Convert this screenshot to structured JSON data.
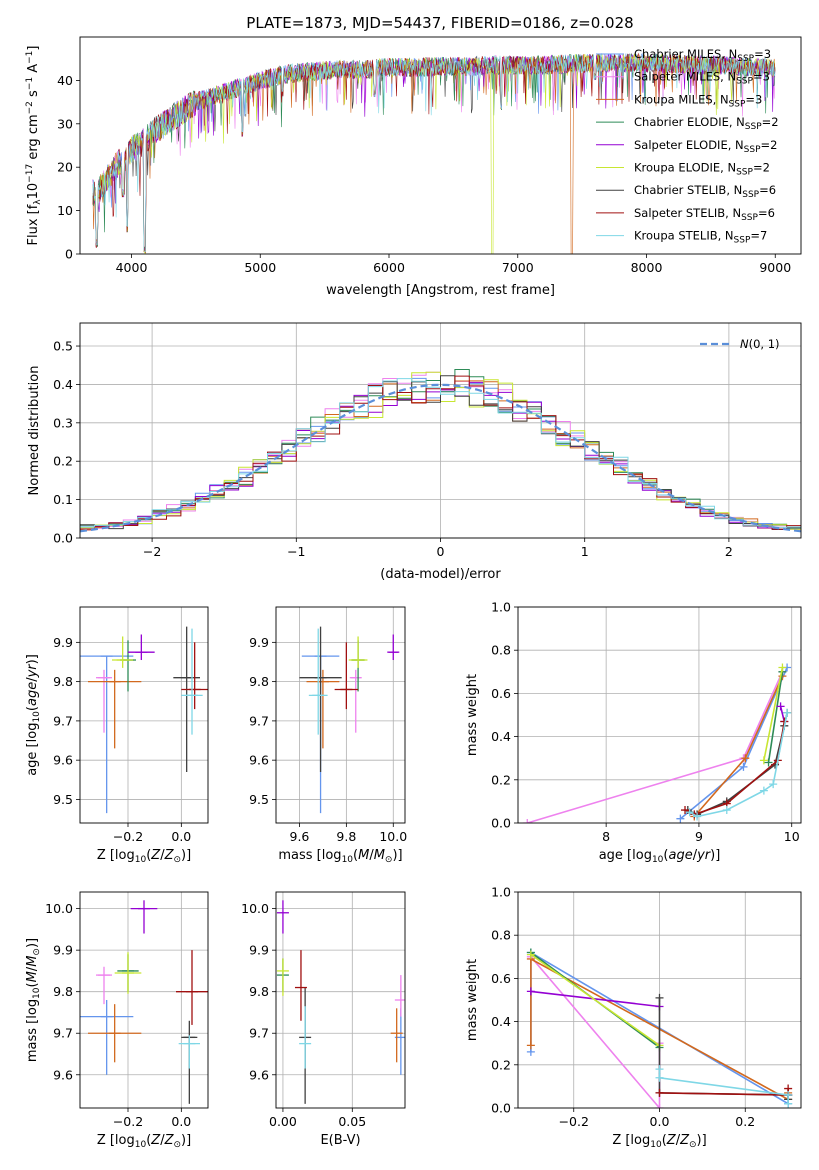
{
  "title": "PLATE=1873, MJD=54437, FIBERID=0186, z=0.028",
  "models": [
    {
      "name": "Chabrier MILES, N",
      "sub": "SSP",
      "suffix": "=3",
      "color": "#6495ed"
    },
    {
      "name": "Salpeter MILES, N",
      "sub": "SSP",
      "suffix": "=3",
      "color": "#ee82ee"
    },
    {
      "name": "Kroupa MILES, N",
      "sub": "SSP",
      "suffix": "=3",
      "color": "#d2691e"
    },
    {
      "name": "Chabrier ELODIE, N",
      "sub": "SSP",
      "suffix": "=2",
      "color": "#2e8b57"
    },
    {
      "name": "Salpeter ELODIE, N",
      "sub": "SSP",
      "suffix": "=2",
      "color": "#9400d3"
    },
    {
      "name": "Kroupa ELODIE, N",
      "sub": "SSP",
      "suffix": "=2",
      "color": "#c8e632"
    },
    {
      "name": "Chabrier STELIB, N",
      "sub": "SSP",
      "suffix": "=6",
      "color": "#404040"
    },
    {
      "name": "Salpeter STELIB, N",
      "sub": "SSP",
      "suffix": "=6",
      "color": "#a01010"
    },
    {
      "name": "Kroupa STELIB, N",
      "sub": "SSP",
      "suffix": "=7",
      "color": "#7fd7e6"
    }
  ],
  "chart_data": [
    {
      "type": "line",
      "id": "spectrum",
      "xlabel": "wavelength [Angstrom, rest frame]",
      "ylabel_text": "Flux [f",
      "ylabel_sub": "λ",
      "ylabel_rest": "10",
      "ylabel_exp": "−17",
      "ylabel_tail": " erg cm",
      "ylabel_exp2": "−2",
      "ylabel_tail2": " s",
      "ylabel_exp3": "−1",
      "ylabel_tail3": " A",
      "ylabel_exp4": "−1",
      "ylabel_end": "]",
      "xlim": [
        3600,
        9200
      ],
      "ylim": [
        0,
        50
      ],
      "xticks": [
        4000,
        5000,
        6000,
        7000,
        8000,
        9000
      ],
      "yticks": [
        0,
        10,
        20,
        30,
        40
      ],
      "continuum": {
        "x": [
          3700,
          3750,
          3800,
          3850,
          3900,
          3950,
          4000,
          4100,
          4200,
          4300,
          4400,
          4500,
          4600,
          4800,
          5000,
          5200,
          5400,
          5600,
          5800,
          6000,
          6200,
          6400,
          6600,
          6800,
          7000,
          7200,
          7400,
          7600,
          7800,
          8000,
          8200,
          8400,
          8600,
          8800,
          9000
        ],
        "y": [
          14,
          15,
          17,
          19,
          21,
          22,
          24,
          26,
          29,
          31,
          33,
          35,
          36,
          38,
          40,
          41.5,
          42,
          42.5,
          42.5,
          43,
          43,
          43.2,
          43.2,
          43.5,
          43.5,
          43.5,
          43.8,
          44,
          44,
          44,
          43.8,
          43.5,
          43.5,
          43,
          43
        ]
      },
      "absorption": [
        {
          "x": 3730,
          "y": 1.5
        },
        {
          "x": 3934,
          "y": 13
        },
        {
          "x": 3968,
          "y": 5
        },
        {
          "x": 4102,
          "y": 0
        },
        {
          "x": 4861,
          "y": 27
        },
        {
          "x": 5175,
          "y": 36
        },
        {
          "x": 5890,
          "y": 36
        },
        {
          "x": 6870,
          "y": 33
        },
        {
          "x": 7600,
          "y": 40
        }
      ],
      "dropouts": [
        {
          "x": 6800,
          "color": "#c8e632"
        },
        {
          "x": 7420,
          "color": "#d2691e"
        }
      ],
      "legend_loc": "top-right"
    },
    {
      "type": "line",
      "id": "residuals",
      "xlabel": "(data-model)/error",
      "ylabel": "Normed distribution",
      "xlim": [
        -2.5,
        2.5
      ],
      "ylim": [
        0,
        0.56
      ],
      "xticks": [
        -2,
        -1,
        0,
        1,
        2
      ],
      "xtick_labels": [
        "−2",
        "−1",
        "0",
        "1",
        "2"
      ],
      "yticks": [
        0.0,
        0.1,
        0.2,
        0.3,
        0.4,
        0.5
      ],
      "ytick_labels": [
        "0.0",
        "0.1",
        "0.2",
        "0.3",
        "0.4",
        "0.5"
      ],
      "bin_width": 0.1,
      "gaussian_label_italic": "N",
      "gaussian_label_rest": "(0, 1)",
      "gaussian_color": "#5b8fd9",
      "legend_loc": "top-right"
    },
    {
      "type": "scatter",
      "id": "age-vs-Z",
      "xlabel": "Z [log",
      "xlabel_sub": "10",
      "xlabel_rest": "(Z/Z",
      "xlabel_sub2": "⊙",
      "xlabel_end": ")]",
      "ylabel": "age  [log",
      "ylabel_sub": "10",
      "ylabel_rest": "(age/yr)]",
      "xlim": [
        -0.38,
        0.1
      ],
      "ylim": [
        9.44,
        9.99
      ],
      "xticks": [
        -0.2,
        0.0
      ],
      "xtick_labels": [
        "−0.2",
        "0.0"
      ],
      "yticks": [
        9.5,
        9.6,
        9.7,
        9.8,
        9.9
      ],
      "yticks_labels": [
        "9.5",
        "9.6",
        "9.7",
        "9.8",
        "9.9"
      ],
      "points": [
        {
          "m": 0,
          "x": -0.28,
          "y": 9.865,
          "xerr": 0.1,
          "yerr": [
            0.4,
            0.0
          ]
        },
        {
          "m": 1,
          "x": -0.29,
          "y": 9.81,
          "xerr": 0.03,
          "yerr": [
            0.14,
            0.02
          ]
        },
        {
          "m": 2,
          "x": -0.25,
          "y": 9.8,
          "xerr": 0.1,
          "yerr": [
            0.17,
            0.03
          ]
        },
        {
          "m": 3,
          "x": -0.2,
          "y": 9.855,
          "xerr": 0.03,
          "yerr": [
            0.08,
            0.05
          ]
        },
        {
          "m": 4,
          "x": -0.15,
          "y": 9.875,
          "xerr": 0.05,
          "yerr": [
            0.02,
            0.045
          ]
        },
        {
          "m": 5,
          "x": -0.22,
          "y": 9.855,
          "xerr": 0.04,
          "yerr": [
            0.02,
            0.06
          ]
        },
        {
          "m": 6,
          "x": 0.02,
          "y": 9.81,
          "xerr": 0.05,
          "yerr": [
            0.24,
            0.13
          ]
        },
        {
          "m": 7,
          "x": 0.05,
          "y": 9.78,
          "xerr": 0.05,
          "yerr": [
            0.05,
            0.12
          ]
        },
        {
          "m": 8,
          "x": 0.04,
          "y": 9.765,
          "xerr": 0.04,
          "yerr": [
            0.1,
            0.17
          ]
        }
      ]
    },
    {
      "type": "scatter",
      "id": "age-vs-mass",
      "xlabel": "mass [log",
      "xlabel_sub": "10",
      "xlabel_rest": "(M/M",
      "xlabel_sub2": "⊙",
      "xlabel_end": ")]",
      "xlim": [
        9.5,
        10.05
      ],
      "ylim": [
        9.44,
        9.99
      ],
      "xticks": [
        9.6,
        9.8,
        10.0
      ],
      "xtick_labels": [
        "9.6",
        "9.8",
        "10.0"
      ],
      "yticks": [
        9.5,
        9.6,
        9.7,
        9.8,
        9.9
      ],
      "yticks_labels": [
        "9.5",
        "9.6",
        "9.7",
        "9.8",
        "9.9"
      ],
      "points": [
        {
          "m": 0,
          "x": 9.69,
          "y": 9.865,
          "xerr": 0.08,
          "yerr": [
            0.4,
            0.0
          ]
        },
        {
          "m": 1,
          "x": 9.84,
          "y": 9.81,
          "xerr": 0.02,
          "yerr": [
            0.14,
            0.02
          ]
        },
        {
          "m": 2,
          "x": 9.7,
          "y": 9.8,
          "xerr": 0.07,
          "yerr": [
            0.17,
            0.03
          ]
        },
        {
          "m": 3,
          "x": 9.85,
          "y": 9.855,
          "xerr": 0.03,
          "yerr": [
            0.08,
            0.05
          ]
        },
        {
          "m": 4,
          "x": 10.0,
          "y": 9.875,
          "xerr": 0.02,
          "yerr": [
            0.02,
            0.045
          ]
        },
        {
          "m": 5,
          "x": 9.85,
          "y": 9.855,
          "xerr": 0.04,
          "yerr": [
            0.02,
            0.06
          ]
        },
        {
          "m": 6,
          "x": 9.69,
          "y": 9.81,
          "xerr": 0.09,
          "yerr": [
            0.24,
            0.13
          ]
        },
        {
          "m": 7,
          "x": 9.8,
          "y": 9.78,
          "xerr": 0.05,
          "yerr": [
            0.05,
            0.12
          ]
        },
        {
          "m": 8,
          "x": 9.68,
          "y": 9.765,
          "xerr": 0.04,
          "yerr": [
            0.1,
            0.17
          ]
        }
      ]
    },
    {
      "type": "line",
      "id": "weight-vs-age",
      "xlabel": "age  [log",
      "xlabel_sub": "10",
      "xlabel_rest": "(age/yr)]",
      "ylabel": "mass weight",
      "xlim": [
        7.05,
        10.1
      ],
      "ylim": [
        0,
        1
      ],
      "xticks": [
        8,
        9,
        10
      ],
      "xtick_labels": [
        "8",
        "9",
        "10"
      ],
      "yticks": [
        0.0,
        0.2,
        0.4,
        0.6,
        0.8,
        1.0
      ],
      "ytick_labels": [
        "0.0",
        "0.2",
        "0.4",
        "0.6",
        "0.8",
        "1.0"
      ],
      "series": [
        {
          "m": 0,
          "x": [
            8.8,
            9.48,
            9.95
          ],
          "y": [
            0.02,
            0.26,
            0.72
          ]
        },
        {
          "m": 1,
          "x": [
            7.15,
            9.48,
            9.9
          ],
          "y": [
            0.0,
            0.3,
            0.7
          ]
        },
        {
          "m": 2,
          "x": [
            8.95,
            9.5,
            9.9
          ],
          "y": [
            0.03,
            0.3,
            0.68
          ]
        },
        {
          "m": 3,
          "x": [
            9.75,
            9.9
          ],
          "y": [
            0.28,
            0.7
          ]
        },
        {
          "m": 4,
          "x": [
            9.88,
            9.92
          ],
          "y": [
            0.54,
            0.47
          ]
        },
        {
          "m": 5,
          "x": [
            9.7,
            9.9
          ],
          "y": [
            0.29,
            0.72
          ]
        },
        {
          "m": 6,
          "x": [
            8.88,
            8.98,
            9.3,
            9.82,
            9.92,
            9.95
          ],
          "y": [
            0.06,
            0.04,
            0.1,
            0.27,
            0.45,
            0.51
          ]
        },
        {
          "m": 7,
          "x": [
            8.85,
            8.95,
            9.3,
            9.85,
            9.92
          ],
          "y": [
            0.06,
            0.04,
            0.09,
            0.29,
            0.47
          ]
        },
        {
          "m": 8,
          "x": [
            8.9,
            8.98,
            9.3,
            9.7,
            9.8,
            9.95
          ],
          "y": [
            0.05,
            0.03,
            0.06,
            0.15,
            0.18,
            0.51
          ]
        }
      ]
    },
    {
      "type": "scatter",
      "id": "mass-vs-Z",
      "xlabel": "Z [log",
      "xlabel_sub": "10",
      "xlabel_rest": "(Z/Z",
      "xlabel_sub2": "⊙",
      "xlabel_end": ")]",
      "ylabel": "mass [log",
      "ylabel_sub": "10",
      "ylabel_rest": "(M/M",
      "ylabel_sub2": "⊙",
      "ylabel_end": ")]",
      "xlim": [
        -0.38,
        0.1
      ],
      "ylim": [
        9.52,
        10.04
      ],
      "xticks": [
        -0.2,
        0.0
      ],
      "xtick_labels": [
        "−0.2",
        "0.0"
      ],
      "yticks": [
        9.6,
        9.7,
        9.8,
        9.9,
        10.0
      ],
      "yticks_labels": [
        "9.6",
        "9.7",
        "9.8",
        "9.9",
        "10.0"
      ],
      "points": [
        {
          "m": 0,
          "x": -0.28,
          "y": 9.74,
          "xerr": 0.1,
          "yerr": [
            0.14,
            0.04
          ]
        },
        {
          "m": 1,
          "x": -0.29,
          "y": 9.84,
          "xerr": 0.03,
          "yerr": [
            0.07,
            0.02
          ]
        },
        {
          "m": 2,
          "x": -0.25,
          "y": 9.7,
          "xerr": 0.1,
          "yerr": [
            0.07,
            0.07
          ]
        },
        {
          "m": 3,
          "x": -0.2,
          "y": 9.85,
          "xerr": 0.04,
          "yerr": [
            0.05,
            0.04
          ]
        },
        {
          "m": 4,
          "x": -0.14,
          "y": 10.0,
          "xerr": 0.05,
          "yerr": [
            0.06,
            0.02
          ]
        },
        {
          "m": 5,
          "x": -0.2,
          "y": 9.845,
          "xerr": 0.05,
          "yerr": [
            0.05,
            0.05
          ]
        },
        {
          "m": 6,
          "x": 0.03,
          "y": 9.69,
          "xerr": 0.03,
          "yerr": [
            0.16,
            0.04
          ]
        },
        {
          "m": 7,
          "x": 0.04,
          "y": 9.8,
          "xerr": 0.06,
          "yerr": [
            0.08,
            0.1
          ]
        },
        {
          "m": 8,
          "x": 0.03,
          "y": 9.675,
          "xerr": 0.04,
          "yerr": [
            0.06,
            0.02
          ]
        }
      ]
    },
    {
      "type": "scatter",
      "id": "mass-vs-EBV",
      "xlabel": "E(B-V)",
      "xlim": [
        -0.005,
        0.088
      ],
      "ylim": [
        9.52,
        10.04
      ],
      "xticks": [
        0.0,
        0.05
      ],
      "xtick_labels": [
        "0.00",
        "0.05"
      ],
      "yticks": [
        9.6,
        9.7,
        9.8,
        9.9,
        10.0
      ],
      "yticks_labels": [
        "9.6",
        "9.7",
        "9.8",
        "9.9",
        "10.0"
      ],
      "points": [
        {
          "m": 0,
          "x": 0.085,
          "y": 9.69,
          "xerr": 0.0,
          "yerr": [
            0.09,
            0.07
          ]
        },
        {
          "m": 1,
          "x": 0.085,
          "y": 9.78,
          "xerr": 0.0,
          "yerr": [
            0.04,
            0.06
          ]
        },
        {
          "m": 2,
          "x": 0.082,
          "y": 9.7,
          "xerr": 0.0,
          "yerr": [
            0.07,
            0.06
          ]
        },
        {
          "m": 3,
          "x": 0.0,
          "y": 9.84,
          "xerr": 0.0,
          "yerr": [
            0.04,
            0.04
          ]
        },
        {
          "m": 4,
          "x": 0.0,
          "y": 9.99,
          "xerr": 0.0,
          "yerr": [
            0.05,
            0.03
          ]
        },
        {
          "m": 5,
          "x": 0.0,
          "y": 9.85,
          "xerr": 0.0,
          "yerr": [
            0.06,
            0.03
          ]
        },
        {
          "m": 6,
          "x": 0.016,
          "y": 9.69,
          "xerr": 0.0,
          "yerr": [
            0.16,
            0.12
          ]
        },
        {
          "m": 7,
          "x": 0.013,
          "y": 9.81,
          "xerr": 0.0,
          "yerr": [
            0.08,
            0.09
          ]
        },
        {
          "m": 8,
          "x": 0.016,
          "y": 9.675,
          "xerr": 0.0,
          "yerr": [
            0.06,
            0.09
          ]
        }
      ]
    },
    {
      "type": "line",
      "id": "weight-vs-Z",
      "xlabel": "Z [log",
      "xlabel_sub": "10",
      "xlabel_rest": "(Z/Z",
      "xlabel_sub2": "⊙",
      "xlabel_end": ")]",
      "ylabel": "mass weight",
      "xlim": [
        -0.33,
        0.33
      ],
      "ylim": [
        0,
        1
      ],
      "xticks": [
        -0.2,
        0.0,
        0.2
      ],
      "xtick_labels": [
        "−0.2",
        "0.0",
        "0.2"
      ],
      "yticks": [
        0.0,
        0.2,
        0.4,
        0.6,
        0.8,
        1.0
      ],
      "ytick_labels": [
        "0.0",
        "0.2",
        "0.4",
        "0.6",
        "0.8",
        "1.0"
      ],
      "series": [
        {
          "m": 0,
          "x": [
            -0.3,
            -0.3,
            0.3,
            0.3
          ],
          "y": [
            0.26,
            0.72,
            0.02,
            0.06
          ]
        },
        {
          "m": 1,
          "x": [
            -0.3,
            0.0,
            0.0
          ],
          "y": [
            0.7,
            0.0,
            0.3
          ]
        },
        {
          "m": 2,
          "x": [
            -0.3,
            -0.3,
            0.3,
            0.3
          ],
          "y": [
            0.29,
            0.69,
            0.04,
            0.07
          ]
        },
        {
          "m": 3,
          "x": [
            -0.3,
            0.0
          ],
          "y": [
            0.72,
            0.28
          ]
        },
        {
          "m": 4,
          "x": [
            -0.3,
            0.0
          ],
          "y": [
            0.54,
            0.47
          ]
        },
        {
          "m": 5,
          "x": [
            -0.3,
            0.0
          ],
          "y": [
            0.71,
            0.29
          ]
        },
        {
          "m": 6,
          "x": [
            0.0,
            0.0,
            0.3,
            0.3
          ],
          "y": [
            0.51,
            0.07,
            0.06,
            0.04
          ]
        },
        {
          "m": 7,
          "x": [
            0.0,
            0.3,
            0.3
          ],
          "y": [
            0.07,
            0.06,
            0.09
          ]
        },
        {
          "m": 8,
          "x": [
            0.0,
            0.0,
            0.3,
            0.3
          ],
          "y": [
            0.18,
            0.14,
            0.06,
            0.02
          ]
        }
      ]
    }
  ]
}
